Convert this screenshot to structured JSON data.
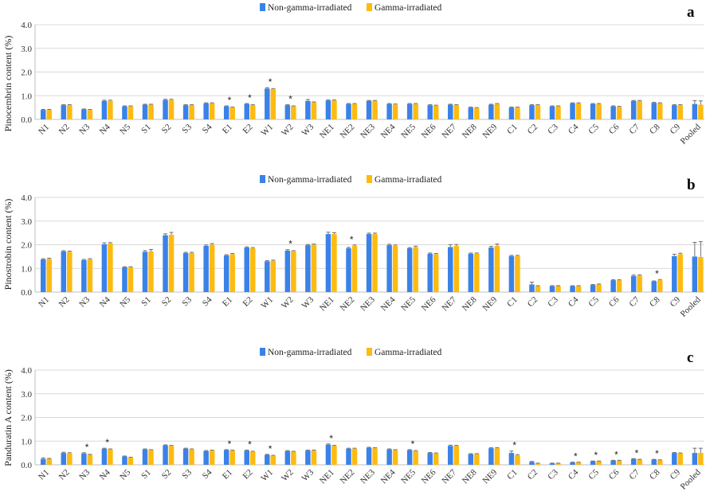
{
  "colors": {
    "non_gamma": "#3B82E8",
    "gamma": "#FDBB12",
    "grid": "#d9d9d9",
    "error": "#707070"
  },
  "legend": {
    "non_gamma": "Non-gamma-irradiated",
    "gamma": "Gamma-irradiated"
  },
  "chart_data": [
    {
      "type": "bar",
      "panel": "a",
      "ylabel": "Pinocembrin content (%)",
      "ylim": [
        0,
        4
      ],
      "yticks": [
        "0.0",
        "1.0",
        "2.0",
        "3.0",
        "4.0"
      ],
      "grid": true,
      "legend_position": "top-center",
      "categories": [
        "N1",
        "N2",
        "N3",
        "N4",
        "N5",
        "S1",
        "S2",
        "S3",
        "S4",
        "E1",
        "E2",
        "W1",
        "W2",
        "W3",
        "NE1",
        "NE2",
        "NE3",
        "NE4",
        "NE5",
        "NE6",
        "NE7",
        "NE8",
        "NE9",
        "C1",
        "C2",
        "C3",
        "C4",
        "C5",
        "C6",
        "C7",
        "C8",
        "C9",
        "Pooled"
      ],
      "series": [
        {
          "name": "Non-gamma-irradiated",
          "values": [
            0.4,
            0.6,
            0.42,
            0.78,
            0.55,
            0.62,
            0.82,
            0.6,
            0.68,
            0.55,
            0.65,
            1.3,
            0.6,
            0.78,
            0.8,
            0.65,
            0.78,
            0.65,
            0.65,
            0.6,
            0.62,
            0.5,
            0.62,
            0.5,
            0.6,
            0.55,
            0.68,
            0.65,
            0.55,
            0.78,
            0.7,
            0.6,
            0.65
          ],
          "errors": [
            0.02,
            0.02,
            0.02,
            0.03,
            0.02,
            0.02,
            0.03,
            0.02,
            0.02,
            0.02,
            0.02,
            0.04,
            0.02,
            0.06,
            0.02,
            0.02,
            0.02,
            0.02,
            0.02,
            0.02,
            0.02,
            0.02,
            0.02,
            0.02,
            0.02,
            0.02,
            0.02,
            0.02,
            0.02,
            0.02,
            0.02,
            0.02,
            0.14
          ]
        },
        {
          "name": "Gamma-irradiated",
          "values": [
            0.4,
            0.6,
            0.4,
            0.78,
            0.55,
            0.62,
            0.82,
            0.6,
            0.68,
            0.5,
            0.6,
            1.27,
            0.55,
            0.72,
            0.8,
            0.65,
            0.78,
            0.63,
            0.65,
            0.58,
            0.6,
            0.48,
            0.65,
            0.5,
            0.6,
            0.55,
            0.68,
            0.65,
            0.53,
            0.78,
            0.68,
            0.6,
            0.62
          ],
          "errors": [
            0.02,
            0.02,
            0.02,
            0.03,
            0.02,
            0.02,
            0.03,
            0.02,
            0.02,
            0.02,
            0.02,
            0.03,
            0.02,
            0.02,
            0.02,
            0.02,
            0.02,
            0.02,
            0.02,
            0.02,
            0.02,
            0.02,
            0.02,
            0.02,
            0.02,
            0.02,
            0.02,
            0.02,
            0.02,
            0.02,
            0.02,
            0.02,
            0.16
          ]
        }
      ],
      "significant": [
        "E1",
        "E2",
        "W1",
        "W2"
      ]
    },
    {
      "type": "bar",
      "panel": "b",
      "ylabel": "Pinostrobin content (%)",
      "ylim": [
        0,
        4
      ],
      "yticks": [
        "0.0",
        "1.0",
        "2.0",
        "3.0",
        "4.0"
      ],
      "grid": true,
      "legend_position": "top-center",
      "categories": [
        "N1",
        "N2",
        "N3",
        "N4",
        "N5",
        "S1",
        "S2",
        "S3",
        "S4",
        "E1",
        "E2",
        "W1",
        "W2",
        "W3",
        "NE1",
        "NE2",
        "NE3",
        "NE4",
        "NE5",
        "NE6",
        "NE7",
        "NE8",
        "NE9",
        "C1",
        "C2",
        "C3",
        "C4",
        "C5",
        "C6",
        "C7",
        "C8",
        "C9",
        "Pooled"
      ],
      "series": [
        {
          "name": "Non-gamma-irradiated",
          "values": [
            1.38,
            1.72,
            1.35,
            2.02,
            1.05,
            1.7,
            2.4,
            1.65,
            1.95,
            1.55,
            1.88,
            1.3,
            1.75,
            1.98,
            2.45,
            1.85,
            2.45,
            1.98,
            1.85,
            1.62,
            1.9,
            1.62,
            1.88,
            1.52,
            0.32,
            0.25,
            0.25,
            0.3,
            0.5,
            0.68,
            0.45,
            1.52,
            1.5
          ],
          "errors": [
            0.03,
            0.03,
            0.03,
            0.06,
            0.02,
            0.05,
            0.06,
            0.03,
            0.04,
            0.03,
            0.03,
            0.03,
            0.04,
            0.03,
            0.08,
            0.04,
            0.04,
            0.04,
            0.03,
            0.03,
            0.1,
            0.03,
            0.05,
            0.03,
            0.1,
            0.02,
            0.02,
            0.02,
            0.02,
            0.04,
            0.02,
            0.08,
            0.6
          ]
        },
        {
          "name": "Gamma-irradiated",
          "values": [
            1.4,
            1.7,
            1.38,
            2.05,
            1.05,
            1.72,
            2.42,
            1.65,
            2.0,
            1.6,
            1.85,
            1.32,
            1.72,
            2.0,
            2.45,
            1.95,
            2.45,
            1.95,
            1.9,
            1.6,
            1.95,
            1.62,
            1.95,
            1.52,
            0.25,
            0.25,
            0.25,
            0.32,
            0.5,
            0.7,
            0.5,
            1.6,
            1.48
          ],
          "errors": [
            0.03,
            0.03,
            0.03,
            0.04,
            0.02,
            0.08,
            0.1,
            0.03,
            0.05,
            0.03,
            0.03,
            0.03,
            0.03,
            0.03,
            0.06,
            0.04,
            0.04,
            0.04,
            0.04,
            0.03,
            0.06,
            0.03,
            0.08,
            0.03,
            0.02,
            0.02,
            0.02,
            0.02,
            0.02,
            0.03,
            0.03,
            0.04,
            0.65
          ]
        }
      ],
      "significant": [
        "W2",
        "NE2",
        "C8"
      ]
    },
    {
      "type": "bar",
      "panel": "c",
      "ylabel": "Panduratin A content (%)",
      "ylim": [
        0,
        4
      ],
      "yticks": [
        "0.0",
        "1.0",
        "2.0",
        "3.0",
        "4.0"
      ],
      "grid": true,
      "legend_position": "top-center",
      "categories": [
        "N1",
        "N2",
        "N3",
        "N4",
        "N5",
        "S1",
        "S2",
        "S3",
        "S4",
        "E1",
        "E2",
        "W1",
        "W2",
        "W3",
        "NE1",
        "NE2",
        "NE3",
        "NE4",
        "NE5",
        "NE6",
        "NE7",
        "NE8",
        "NE9",
        "C1",
        "C2",
        "C3",
        "C4",
        "C5",
        "C6",
        "C7",
        "C8",
        "C9",
        "Pooled"
      ],
      "series": [
        {
          "name": "Non-gamma-irradiated",
          "values": [
            0.25,
            0.5,
            0.48,
            0.68,
            0.35,
            0.65,
            0.82,
            0.68,
            0.58,
            0.62,
            0.6,
            0.42,
            0.58,
            0.6,
            0.85,
            0.68,
            0.72,
            0.65,
            0.62,
            0.5,
            0.8,
            0.45,
            0.7,
            0.5,
            0.12,
            0.06,
            0.1,
            0.15,
            0.18,
            0.25,
            0.22,
            0.5,
            0.5
          ],
          "errors": [
            0.04,
            0.03,
            0.03,
            0.02,
            0.02,
            0.02,
            0.02,
            0.02,
            0.02,
            0.02,
            0.02,
            0.02,
            0.02,
            0.02,
            0.03,
            0.02,
            0.02,
            0.02,
            0.02,
            0.02,
            0.03,
            0.02,
            0.02,
            0.08,
            0.02,
            0.01,
            0.01,
            0.01,
            0.01,
            0.01,
            0.01,
            0.02,
            0.2
          ]
        },
        {
          "name": "Gamma-irradiated",
          "values": [
            0.25,
            0.48,
            0.42,
            0.65,
            0.3,
            0.62,
            0.8,
            0.65,
            0.6,
            0.6,
            0.55,
            0.38,
            0.55,
            0.6,
            0.8,
            0.68,
            0.7,
            0.62,
            0.58,
            0.48,
            0.8,
            0.45,
            0.7,
            0.4,
            0.06,
            0.06,
            0.1,
            0.15,
            0.18,
            0.22,
            0.2,
            0.48,
            0.5
          ],
          "errors": [
            0.02,
            0.03,
            0.02,
            0.02,
            0.02,
            0.02,
            0.02,
            0.02,
            0.02,
            0.02,
            0.02,
            0.02,
            0.02,
            0.02,
            0.02,
            0.02,
            0.02,
            0.02,
            0.02,
            0.02,
            0.02,
            0.02,
            0.02,
            0.03,
            0.01,
            0.01,
            0.01,
            0.01,
            0.01,
            0.01,
            0.01,
            0.02,
            0.2
          ]
        }
      ],
      "significant": [
        "N3",
        "N4",
        "E1",
        "E2",
        "W1",
        "NE1",
        "NE5",
        "C1",
        "C4",
        "C5",
        "C6",
        "C7",
        "C8"
      ]
    }
  ]
}
